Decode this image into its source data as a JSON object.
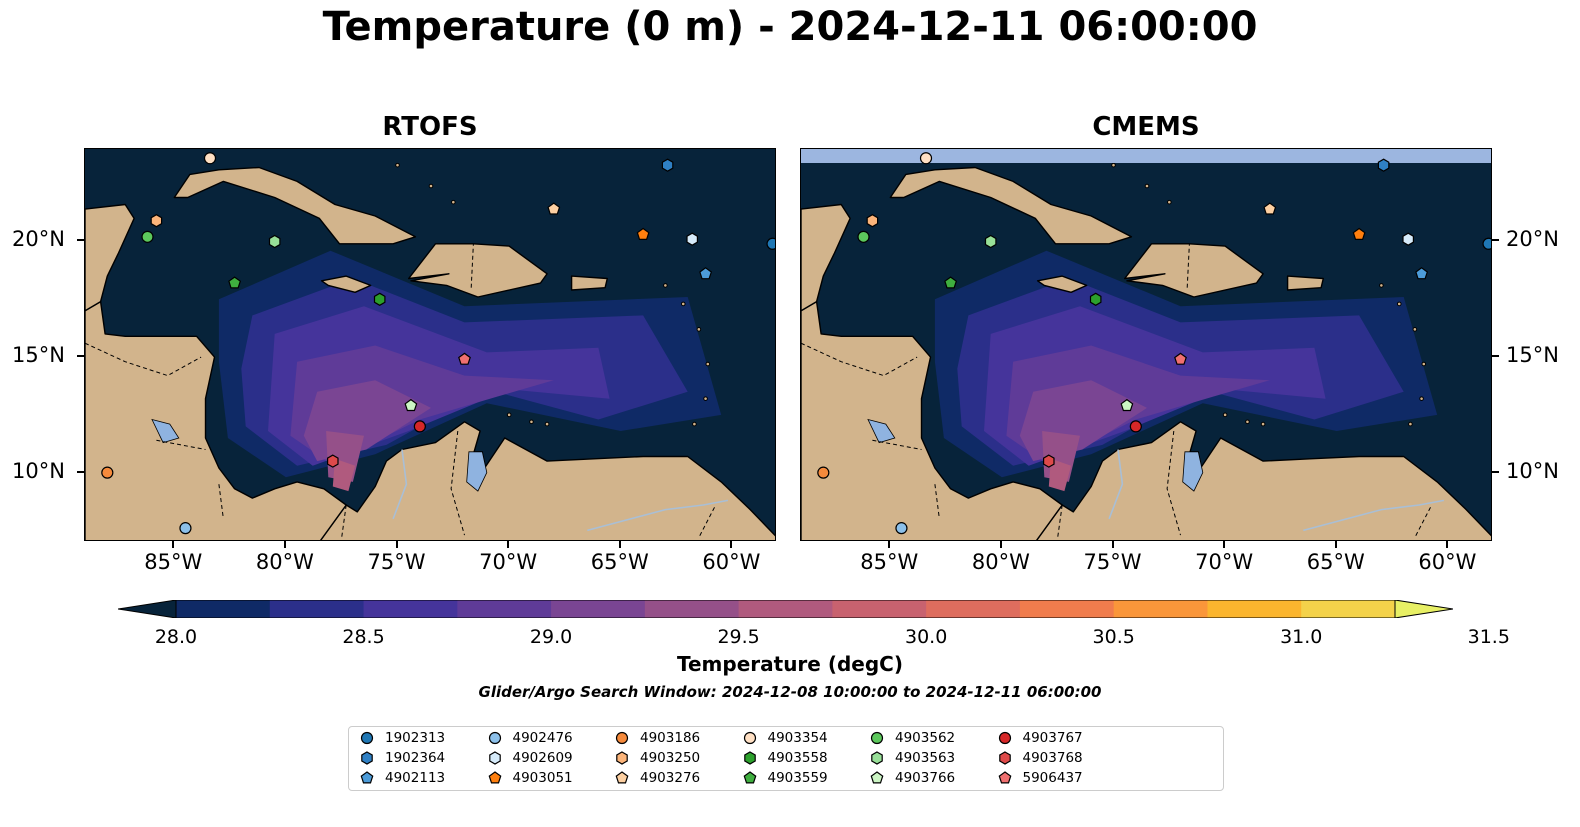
{
  "title": "Temperature (0 m) - 2024-12-11 06:00:00",
  "panels": [
    {
      "name": "RTOFS"
    },
    {
      "name": "CMEMS"
    }
  ],
  "colors": {
    "ocean_deep": "#07233a",
    "land": "#d2b48c",
    "lake": "#8fb3e0",
    "river": "#a9bfd6",
    "nodata_band": "#9cb6e0"
  },
  "axes": {
    "x_ticks": [
      "85°W",
      "80°W",
      "75°W",
      "70°W",
      "65°W",
      "60°W"
    ],
    "y_ticks": [
      "20°N",
      "15°N",
      "10°N"
    ],
    "lon_range": [
      -89,
      -58
    ],
    "lat_range": [
      7,
      24
    ]
  },
  "colorbar": {
    "label": "Temperature (degC)",
    "ticks": [
      "28.0",
      "28.5",
      "29.0",
      "29.5",
      "30.0",
      "30.5",
      "31.0",
      "31.5"
    ],
    "range": [
      28.0,
      31.5
    ],
    "step": 0.25,
    "colors": [
      "#07233a",
      "#0f2a66",
      "#2b2f8a",
      "#45349b",
      "#5f3b98",
      "#7a4593",
      "#955089",
      "#b05a7e",
      "#c8626f",
      "#de6d5e",
      "#f07c4d",
      "#fa963a",
      "#fbb52e",
      "#f4d24a",
      "#e8f065"
    ]
  },
  "search_window": "Glider/Argo Search Window: 2024-12-08 10:00:00 to 2024-12-11 06:00:00",
  "floats": [
    {
      "id": "1902313",
      "marker": "circle",
      "color": "#1f77b4",
      "lon": -58.2,
      "lat": 19.9
    },
    {
      "id": "1902364",
      "marker": "hexagon",
      "color": "#2f80c4",
      "lon": -62.9,
      "lat": 23.3
    },
    {
      "id": "4902113",
      "marker": "pentagon",
      "color": "#4c9bd8",
      "lon": -61.2,
      "lat": 18.6
    },
    {
      "id": "4902476",
      "marker": "circle",
      "color": "#8cc0ea",
      "lon": -84.5,
      "lat": 7.6
    },
    {
      "id": "4902609",
      "marker": "hexagon",
      "color": "#d6ebfa",
      "lon": -61.8,
      "lat": 20.1
    },
    {
      "id": "4903051",
      "marker": "pentagon",
      "color": "#ff7f0e",
      "lon": -64.0,
      "lat": 20.3
    },
    {
      "id": "4903186",
      "marker": "circle",
      "color": "#f58a3c",
      "lon": -88.0,
      "lat": 10.0
    },
    {
      "id": "4903250",
      "marker": "hexagon",
      "color": "#fbb47a",
      "lon": -85.8,
      "lat": 20.9
    },
    {
      "id": "4903276",
      "marker": "pentagon",
      "color": "#fdd0a2",
      "lon": -68.0,
      "lat": 21.4
    },
    {
      "id": "4903354",
      "marker": "circle",
      "color": "#ffe0c4",
      "lon": -83.4,
      "lat": 23.6
    },
    {
      "id": "4903558",
      "marker": "hexagon",
      "color": "#2ca02c",
      "lon": -75.8,
      "lat": 17.5
    },
    {
      "id": "4903559",
      "marker": "pentagon",
      "color": "#3fae3f",
      "lon": -82.3,
      "lat": 18.2
    },
    {
      "id": "4903562",
      "marker": "circle",
      "color": "#5cc85c",
      "lon": -86.2,
      "lat": 20.2
    },
    {
      "id": "4903563",
      "marker": "hexagon",
      "color": "#98e098",
      "lon": -80.5,
      "lat": 20.0
    },
    {
      "id": "4903766",
      "marker": "pentagon",
      "color": "#ccf5c4",
      "lon": -74.4,
      "lat": 12.9
    },
    {
      "id": "4903767",
      "marker": "circle",
      "color": "#d62728",
      "lon": -74.0,
      "lat": 12.0
    },
    {
      "id": "4903768",
      "marker": "hexagon",
      "color": "#de4a4a",
      "lon": -77.9,
      "lat": 10.5
    },
    {
      "id": "5906437",
      "marker": "pentagon",
      "color": "#f07070",
      "lon": -72.0,
      "lat": 14.9
    }
  ]
}
